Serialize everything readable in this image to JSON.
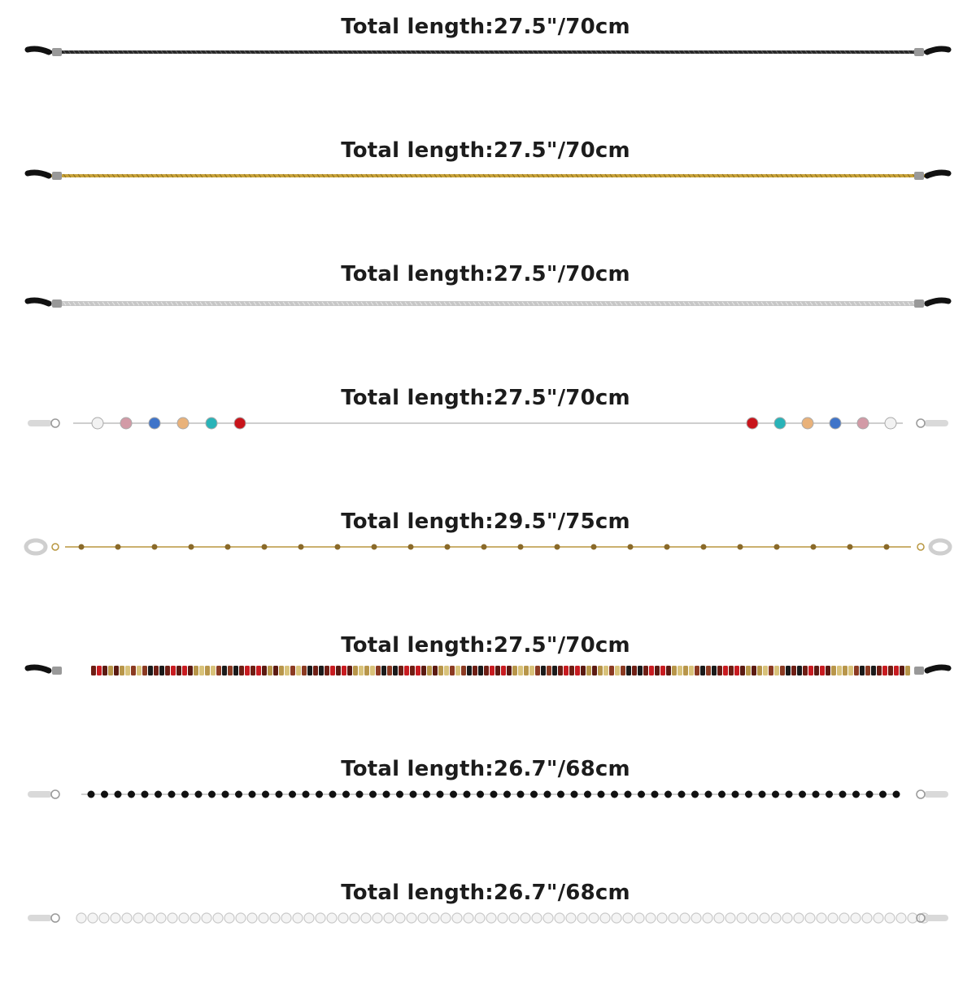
{
  "products": [
    {
      "label": "Total length:27.5\"/70cm",
      "style": "black-chain",
      "end": "black-grip",
      "color": "#2a2a2a"
    },
    {
      "label": "Total length:27.5\"/70cm",
      "style": "gold-chain",
      "end": "black-grip",
      "color": "#c9a33a"
    },
    {
      "label": "Total length:27.5\"/70cm",
      "style": "silver-chain",
      "end": "black-loop",
      "color": "#c7c7c7"
    },
    {
      "label": "Total length:27.5\"/70cm",
      "style": "crystal-station-chain",
      "end": "clear-grip",
      "color": "#bdbdbd",
      "crystal_colors": [
        "#f2f2f2",
        "#d29aa6",
        "#3f74c9",
        "#e9b27a",
        "#29b3b8",
        "#c8141b"
      ]
    },
    {
      "label": "Total length:29.5\"/75cm",
      "style": "gold-bead-station-chain",
      "end": "clear-loop",
      "color": "#b8963f"
    },
    {
      "label": "Total length:27.5\"/70cm",
      "style": "seed-bead-strand",
      "end": "black-grip",
      "color": "#7a2a1c",
      "bead_colors": [
        "#6e1e14",
        "#8b3a22",
        "#b8964a",
        "#c81b20",
        "#1a1a1a",
        "#d8c27a",
        "#5b1a12"
      ]
    },
    {
      "label": "Total length:26.7\"/68cm",
      "style": "black-bead-chain",
      "end": "clear-grip",
      "color": "#111111"
    },
    {
      "label": "Total length:26.7\"/68cm",
      "style": "pearl-bead-chain",
      "end": "clear-grip",
      "color": "#e6e6e6"
    }
  ]
}
